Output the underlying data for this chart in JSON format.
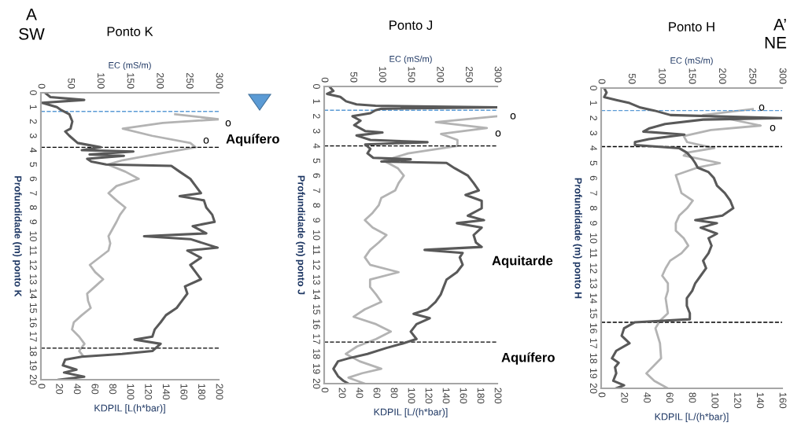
{
  "chart_data": [
    {
      "type": "line",
      "orientation": "horizontal",
      "title": "Ponto K",
      "xlabel": "KDPIL [L(h*bar)]",
      "x2label": "EC (mS/m)",
      "ylabel": "Profundidade (m) ponto K",
      "ylim": [
        20,
        0
      ],
      "yticks": [
        0,
        1,
        2,
        3,
        4,
        5,
        6,
        7,
        8,
        9,
        10,
        11,
        12,
        13,
        14,
        15,
        16,
        17,
        18,
        19,
        20
      ],
      "xlim": [
        0,
        200
      ],
      "xticks": [
        0,
        20,
        40,
        60,
        80,
        100,
        120,
        140,
        160,
        180,
        200
      ],
      "x2lim": [
        0,
        300
      ],
      "x2ticks": [
        0,
        50,
        100,
        150,
        200,
        250,
        300
      ],
      "series": [
        {
          "axis": "x2",
          "color": "#595959",
          "x": [
            0,
            0.3,
            0.5,
            0.7,
            1.0,
            1.2,
            1.5,
            2,
            2.5,
            2.7,
            3,
            3.5,
            3.8,
            4.0,
            4.1,
            4.3,
            4.4,
            4.6,
            4.8,
            5.0,
            5.1,
            5.5,
            6,
            6.5,
            7,
            7.2,
            7.5,
            8,
            8.5,
            9,
            9.3,
            9.8,
            10,
            10.2,
            10.5,
            10.8,
            11,
            11.5,
            12,
            12.5,
            13,
            13.5,
            14,
            14.5,
            15,
            15.5,
            16,
            16.5,
            17,
            17.2,
            17.5,
            18,
            18.2,
            18.4,
            18.6,
            19,
            19.3,
            19.5,
            19.8,
            20
          ],
          "values": [
            7,
            16,
            73,
            2,
            27,
            34,
            48,
            53,
            50,
            41,
            48,
            62,
            101,
            69,
            156,
            82,
            140,
            78,
            85,
            110,
            220,
            234,
            252,
            261,
            270,
            234,
            275,
            279,
            289,
            293,
            256,
            279,
            174,
            252,
            275,
            298,
            247,
            270,
            252,
            261,
            270,
            243,
            247,
            238,
            229,
            211,
            202,
            192,
            188,
            158,
            202,
            188,
            137,
            69,
            41,
            37,
            60,
            39,
            73,
            30
          ]
        },
        {
          "color": "#b3b3b3",
          "x": [
            1.5,
            1.85,
            2.1,
            2.5,
            3,
            3.5,
            3.8,
            4.2,
            4.7,
            5.0,
            5.5,
            6,
            6.5,
            7,
            7.5,
            8,
            8.5,
            9,
            10,
            10.5,
            11,
            12,
            12.5,
            13,
            13.5,
            14,
            14.5,
            15,
            15.5,
            16,
            16.5,
            17,
            17.5,
            18,
            18.3
          ],
          "values": [
            151,
            200,
            137,
            92,
            125,
            168,
            174,
            137,
            92,
            75,
            95,
            110,
            85,
            76,
            85,
            95,
            89,
            85,
            76,
            78,
            76,
            55,
            61,
            70,
            61,
            52,
            53,
            56,
            46,
            37,
            35,
            43,
            49,
            43,
            47
          ]
        }
      ],
      "ref_lines": [
        {
          "axis": "y",
          "value": 1.3,
          "color": "#5b9bd5",
          "line_style": "dashed"
        },
        {
          "axis": "y",
          "value": 3.8,
          "color": "#000000",
          "line_style": "dashed"
        },
        {
          "axis": "y",
          "value": 17.8,
          "color": "#000000",
          "line_style": "dashed"
        }
      ],
      "annotations": [
        "A",
        "SW",
        "Aquífero",
        "o",
        "o"
      ]
    },
    {
      "type": "line",
      "orientation": "horizontal",
      "title": "Ponto J",
      "xlabel": "KDPIL [L/(h*bar)]",
      "x2label": "EC (mS/m)",
      "ylabel": "Profundidade (m) ponto J",
      "ylim": [
        20,
        0
      ],
      "yticks": [
        0,
        1,
        2,
        3,
        4,
        5,
        6,
        7,
        8,
        9,
        10,
        11,
        12,
        13,
        14,
        15,
        16,
        17,
        18,
        19,
        20
      ],
      "xlim": [
        0,
        200
      ],
      "xticks": [
        0,
        20,
        40,
        60,
        80,
        100,
        120,
        140,
        160,
        180,
        200
      ],
      "x2lim": [
        0,
        300
      ],
      "x2ticks": [
        0,
        50,
        100,
        150,
        200,
        250,
        300
      ],
      "series": [
        {
          "axis": "x2",
          "color": "#595959",
          "x": [
            0,
            0.3,
            0.5,
            0.7,
            1,
            1.2,
            1.3,
            1.4,
            1.5,
            1.6,
            1.8,
            2,
            2.3,
            2.6,
            3,
            3.1,
            3.3,
            3.6,
            3.75,
            3.9,
            4.2,
            4.5,
            4.8,
            4.9,
            5.05,
            5.15,
            5.5,
            6,
            6.5,
            7,
            7.3,
            7.7,
            8.2,
            8.7,
            9,
            9.2,
            9.5,
            10,
            10.5,
            10.8,
            11,
            11.2,
            11.5,
            12,
            12.5,
            13,
            13.5,
            14,
            14.5,
            15,
            15.3,
            15.6,
            16,
            16.5,
            17,
            17.3,
            17.6,
            18,
            18.3,
            18.5,
            19,
            19.5,
            19.8,
            20
          ],
          "values": [
            9,
            16,
            5,
            28,
            38,
            56,
            89,
            300,
            99,
            89,
            80,
            49,
            63,
            52,
            71,
            101,
            56,
            80,
            179,
            71,
            80,
            75,
            85,
            150,
            99,
            212,
            226,
            249,
            259,
            268,
            245,
            273,
            273,
            249,
            277,
            230,
            273,
            259,
            263,
            273,
            174,
            240,
            235,
            240,
            230,
            212,
            207,
            202,
            193,
            179,
            155,
            183,
            160,
            150,
            160,
            136,
            108,
            75,
            42,
            24,
            16,
            24,
            33,
            42
          ]
        },
        {
          "color": "#b3b3b3",
          "x": [
            2,
            2.4,
            2.8,
            3.2,
            3.6,
            4,
            4.5,
            5,
            5.5,
            6,
            6.5,
            7,
            7.5,
            8,
            8.5,
            9,
            9.5,
            10,
            10.5,
            11,
            11.5,
            12,
            12.5,
            13,
            13.5,
            14,
            14.5,
            15,
            15.5,
            16,
            16.5,
            17,
            17.5,
            18,
            18.5,
            19,
            19.3,
            19.6,
            20
          ],
          "values": [
            200,
            129,
            188,
            135,
            154,
            154,
            97,
            69,
            85,
            92,
            86,
            82,
            66,
            63,
            56,
            47,
            56,
            72,
            63,
            53,
            47,
            53,
            86,
            53,
            53,
            60,
            66,
            47,
            34,
            60,
            77,
            60,
            38,
            25,
            41,
            66,
            44,
            28,
            47
          ]
        }
      ],
      "ref_lines": [
        {
          "axis": "y",
          "value": 1.6,
          "color": "#5b9bd5",
          "line_style": "dashed"
        },
        {
          "axis": "y",
          "value": 4.0,
          "color": "#000000",
          "line_style": "dashed"
        },
        {
          "axis": "y",
          "value": 17.2,
          "color": "#000000",
          "line_style": "dashed"
        }
      ],
      "annotations": [
        "Aquitarde",
        "Aquífero",
        "o",
        "o"
      ]
    },
    {
      "type": "line",
      "orientation": "horizontal",
      "title": "Ponto H",
      "xlabel": "KDPIL [L/(h*bar)]",
      "x2label": "EC (mS/m)",
      "ylabel": "Profundidade (m) ponto H",
      "ylim": [
        20,
        0
      ],
      "yticks": [
        0,
        1,
        2,
        3,
        4,
        5,
        6,
        7,
        8,
        9,
        10,
        11,
        12,
        13,
        14,
        15,
        16,
        17,
        18,
        19,
        20
      ],
      "xlim": [
        0,
        160
      ],
      "xticks": [
        0,
        20,
        40,
        60,
        80,
        100,
        120,
        140,
        160
      ],
      "x2lim": [
        0,
        300
      ],
      "x2ticks": [
        0,
        50,
        100,
        150,
        200,
        250,
        300
      ],
      "series": [
        {
          "axis": "x2",
          "color": "#595959",
          "x": [
            0,
            0.3,
            0.6,
            0.8,
            1,
            1.3,
            1.5,
            1.8,
            2,
            2.1,
            2.4,
            2.7,
            2.9,
            3.1,
            3.4,
            3.6,
            3.8,
            4,
            4.3,
            4.7,
            5,
            5.3,
            5.6,
            6,
            6.5,
            7,
            7.5,
            8,
            8.5,
            8.8,
            9,
            9.3,
            9.7,
            10,
            10.5,
            11,
            11.5,
            12,
            12.5,
            13,
            13.5,
            14,
            14.5,
            15,
            15.4,
            15.6,
            16,
            16.5,
            17,
            17.5,
            18,
            18.3,
            18.6,
            19,
            19.5,
            19.8,
            20
          ],
          "values": [
            5,
            9,
            5,
            25,
            47,
            65,
            88,
            115,
            300,
            169,
            106,
            79,
            70,
            138,
            79,
            56,
            56,
            129,
            142,
            151,
            156,
            160,
            178,
            187,
            192,
            205,
            214,
            219,
            201,
            156,
            192,
            165,
            192,
            178,
            183,
            178,
            169,
            174,
            165,
            156,
            151,
            142,
            142,
            147,
            147,
            56,
            38,
            34,
            47,
            25,
            18,
            29,
            23,
            25,
            20,
            38,
            25
          ]
        },
        {
          "color": "#b3b3b3",
          "x": [
            1.4,
            1.8,
            2,
            2.5,
            2.8,
            3.2,
            3.6,
            4,
            4.3,
            4.5,
            5,
            5.3,
            5.8,
            6.5,
            7,
            7.5,
            8,
            8.5,
            9,
            9.5,
            10,
            10.5,
            11,
            11.5,
            12,
            12.5,
            13,
            13.5,
            14,
            15,
            15.5,
            16,
            17,
            18,
            19,
            19.5,
            20
          ],
          "values": [
            134,
            90,
            109,
            141,
            97,
            73,
            76,
            100,
            76,
            73,
            105,
            85,
            66,
            69,
            71,
            81,
            76,
            69,
            66,
            66,
            73,
            77,
            71,
            61,
            57,
            54,
            59,
            59,
            57,
            59,
            52,
            48,
            52,
            53,
            40,
            47,
            59
          ]
        }
      ],
      "ref_lines": [
        {
          "axis": "y",
          "value": 1.5,
          "color": "#5b9bd5",
          "line_style": "dashed"
        },
        {
          "axis": "y",
          "value": 3.9,
          "color": "#000000",
          "line_style": "dashed"
        },
        {
          "axis": "y",
          "value": 15.6,
          "color": "#000000",
          "line_style": "dashed"
        }
      ],
      "annotations": [
        "A’",
        "NE",
        "o",
        "o"
      ]
    }
  ]
}
